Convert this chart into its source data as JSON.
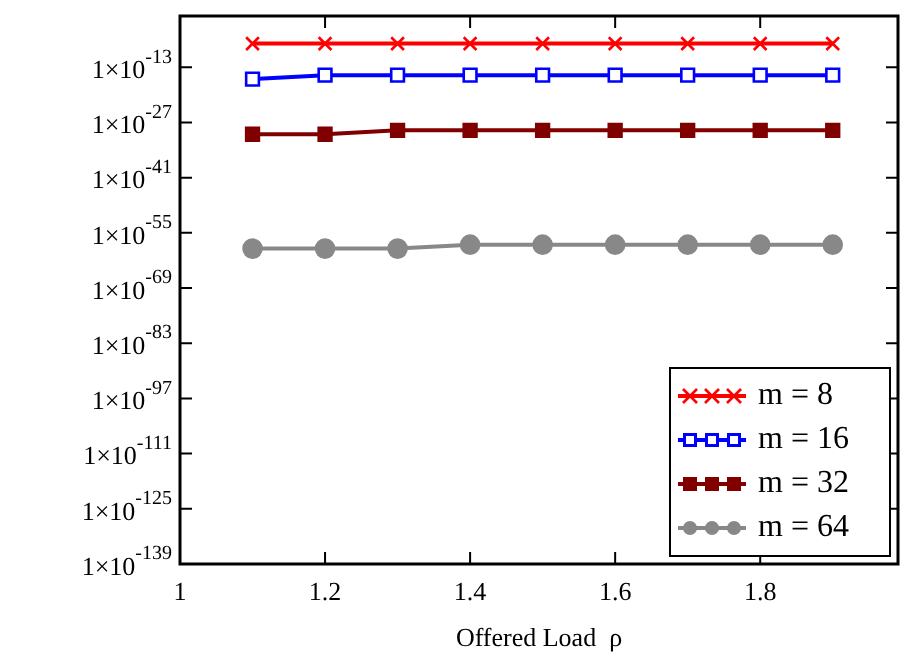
{
  "chart_data": {
    "type": "line",
    "xlabel": "Offered Load  ρ",
    "log": "y",
    "grid": false,
    "legend": "bottom right",
    "x": [
      1.1,
      1.2,
      1.3,
      1.4,
      1.5,
      1.6,
      1.7,
      1.8,
      1.9
    ],
    "xlim": [
      1,
      1.99
    ],
    "xticks": [
      1,
      1.2,
      1.4,
      1.6,
      1.8
    ],
    "ylim": [
      1e-139,
      1
    ],
    "yticks": [
      {
        "value": 1e-139,
        "label": "1×10$^{-139}$"
      },
      {
        "value": 1e-125,
        "label": "1×10$^{-125}$"
      },
      {
        "value": 1e-111,
        "label": "1×10$^{-111}$"
      },
      {
        "value": 1e-97,
        "label": "1×10$^{-97}$"
      },
      {
        "value": 1e-83,
        "label": "1×10$^{-83}$"
      },
      {
        "value": 1e-69,
        "label": "1×10$^{-69}$"
      },
      {
        "value": 1e-55,
        "label": "1×10$^{-55}$"
      },
      {
        "value": 1e-41,
        "label": "1×10$^{-41}$"
      },
      {
        "value": 1e-27,
        "label": "1×10$^{-27}$"
      },
      {
        "value": 1e-13,
        "label": "1×10$^{-13}$"
      }
    ],
    "series": [
      {
        "name": "m = 8",
        "color": "#ff0000",
        "marker": "cross",
        "values": [
          1e-07,
          1e-07,
          1e-07,
          1e-07,
          1e-07,
          1e-07,
          1e-07,
          1e-07,
          1e-07
        ]
      },
      {
        "name": "m = 16",
        "color": "#0000ff",
        "marker": "square",
        "values": [
          1e-16,
          1e-15,
          1e-15,
          1e-15,
          1e-15,
          1e-15,
          1e-15,
          1e-15,
          1e-15
        ]
      },
      {
        "name": "m = 32",
        "color": "#800000",
        "marker": "square",
        "values": [
          1e-30,
          1e-30,
          1e-29,
          1e-29,
          1e-29,
          1e-29,
          1e-29,
          1e-29,
          1e-29
        ]
      },
      {
        "name": "m = 64",
        "color": "#888888",
        "marker": "circle",
        "values": [
          1e-59,
          1e-59,
          1e-59,
          1e-58,
          1e-58,
          1e-58,
          1e-58,
          1e-58,
          1e-58
        ]
      }
    ]
  }
}
